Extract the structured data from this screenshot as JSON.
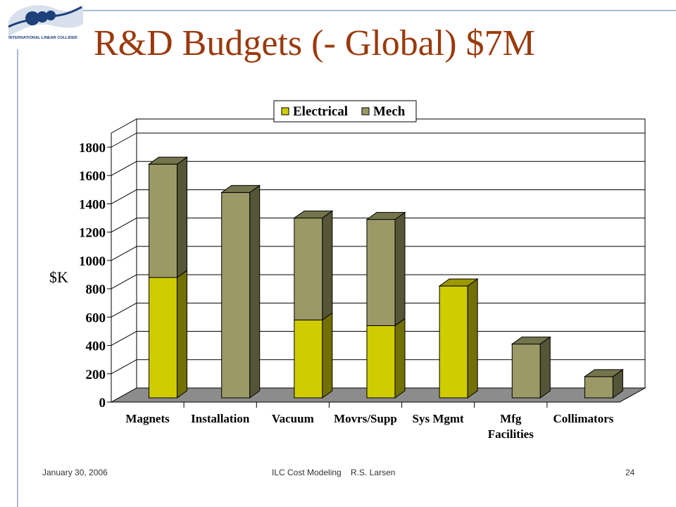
{
  "slide": {
    "title": "R&D Budgets (- Global) $7M",
    "logo_text": "INTERNATIONAL LINEAR COLLIDER",
    "footer_left": "January 30, 2006",
    "footer_center": "ILC Cost Modeling    R.S. Larsen",
    "footer_right": "24"
  },
  "colors": {
    "title": "#9a3a0c",
    "electrical": "#cfcc00",
    "mech": "#9b9a66",
    "floor": "#8c8c8c",
    "rule": "#a9bcd9"
  },
  "chart_data": {
    "type": "bar",
    "stacked": true,
    "style": "3d",
    "categories": [
      "Magnets",
      "Installation",
      "Vacuum",
      "Movrs/Supp",
      "Sys Mgmt",
      "Mfg\nFacilities",
      "Collimators"
    ],
    "series": [
      {
        "name": "Electrical",
        "values": [
          850,
          0,
          550,
          510,
          790,
          0,
          0
        ]
      },
      {
        "name": "Mech",
        "values": [
          800,
          1450,
          720,
          750,
          0,
          380,
          150
        ]
      }
    ],
    "ylabel": "$K",
    "xlabel": "",
    "ylim": [
      0,
      1800
    ],
    "yticks": [
      0,
      200,
      400,
      600,
      800,
      1000,
      1200,
      1400,
      1600,
      1800
    ],
    "grid": true,
    "legend": "top"
  }
}
